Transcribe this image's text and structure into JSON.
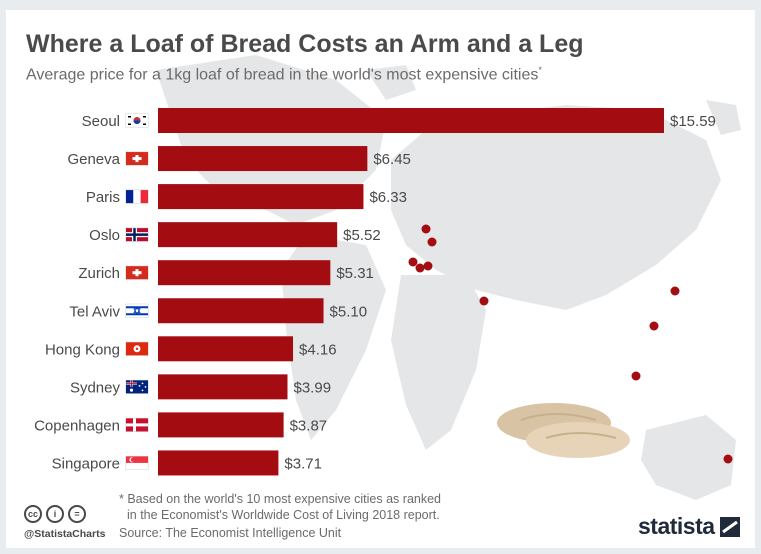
{
  "header": {
    "title": "Where a Loaf of Bread Costs an Arm and a Leg",
    "subtitle": "Average price for a 1kg loaf of bread in the world's most expensive cities",
    "subtitle_mark": "*"
  },
  "chart_data": {
    "type": "bar",
    "orientation": "horizontal",
    "title": "Where a Loaf of Bread Costs an Arm and a Leg",
    "subtitle": "Average price for a 1kg loaf of bread in the world's most expensive cities*",
    "categories": [
      "Seoul",
      "Geneva",
      "Paris",
      "Oslo",
      "Zurich",
      "Tel Aviv",
      "Hong Kong",
      "Sydney",
      "Copenhagen",
      "Singapore"
    ],
    "values": [
      15.59,
      6.45,
      6.33,
      5.52,
      5.31,
      5.1,
      4.16,
      3.99,
      3.87,
      3.71
    ],
    "value_labels": [
      "$15.59",
      "$6.45",
      "$6.33",
      "$5.52",
      "$5.31",
      "$5.10",
      "$4.16",
      "$3.99",
      "$3.87",
      "$3.71"
    ],
    "flags": [
      "south-korea-flag-icon",
      "switzerland-flag-icon",
      "france-flag-icon",
      "norway-flag-icon",
      "switzerland-flag-icon",
      "israel-flag-icon",
      "hong-kong-flag-icon",
      "australia-flag-icon",
      "denmark-flag-icon",
      "singapore-flag-icon"
    ],
    "xlim": [
      0,
      15.59
    ],
    "grid": false,
    "legend": "none",
    "bar_color": "#a30d12"
  },
  "footer": {
    "note_line1": "* Based on the world's 10 most expensive cities as ranked",
    "note_line2": "in the Economist's Worldwide Cost of Living 2018 report.",
    "source": "Source: The Economist Intelligence Unit",
    "handle": "@StatistaCharts",
    "logo": "statista",
    "license_icons": [
      "cc-icon",
      "by-icon",
      "nd-icon"
    ]
  },
  "colors": {
    "bar": "#a30d12",
    "map": "#e4e6e8",
    "dot": "#a30d12",
    "text": "#4a4a4a"
  }
}
